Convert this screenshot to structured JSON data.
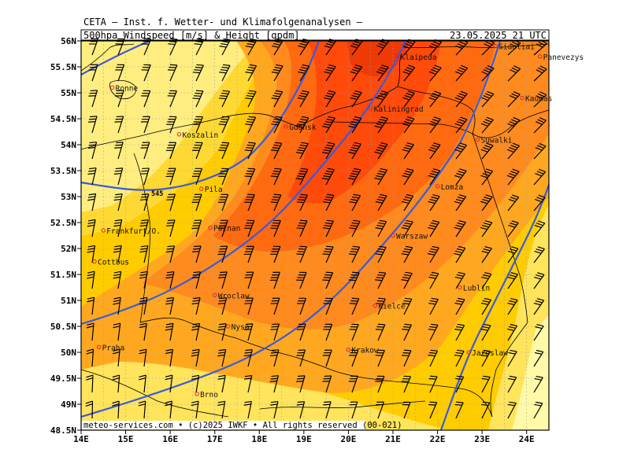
{
  "header": {
    "line1": "CETA — Inst. f. Wetter- und Klimafolgenanalysen —",
    "product": "500hpa Windspeed [m/s] & Height [gpdm]",
    "valid": "23.05.2025 21 UTC"
  },
  "footer": {
    "credit": "meteo-services.com • (c)2025 IWKF • All rights reserved (00-021)"
  },
  "map": {
    "lon_range": [
      14,
      24.5
    ],
    "lat_range": [
      48.5,
      56
    ],
    "lat_ticks": [
      "56N",
      "55.5N",
      "55N",
      "54.5N",
      "54N",
      "53.5N",
      "53N",
      "52.5N",
      "52N",
      "51.5N",
      "51N",
      "50.5N",
      "50N",
      "49.5N",
      "49N",
      "48.5N"
    ],
    "lon_ticks": [
      "14E",
      "15E",
      "16E",
      "17E",
      "18E",
      "19E",
      "20E",
      "21E",
      "22E",
      "23E",
      "24E"
    ],
    "contour_label": "545",
    "colors": {
      "speed_lowest": "#fff9a8",
      "speed_low": "#ffe45c",
      "speed_mid": "#ffcc00",
      "speed_high": "#ffa81f",
      "speed_higher": "#ff8a1e",
      "speed_max": "#ff6a10",
      "speed_core": "#ff4a0a",
      "height_contour": "#3c5ad8",
      "border": "#000000",
      "grid": "#999999"
    },
    "cities": [
      {
        "name": "Klaipeda",
        "lon": 21.1,
        "lat": 55.7
      },
      {
        "name": "Siauliai",
        "lon": 23.3,
        "lat": 55.9
      },
      {
        "name": "Panevezys",
        "lon": 24.3,
        "lat": 55.7
      },
      {
        "name": "Kaunas",
        "lon": 23.9,
        "lat": 54.9
      },
      {
        "name": "Ronne",
        "lon": 14.7,
        "lat": 55.1
      },
      {
        "name": "Kaliningrad",
        "lon": 20.5,
        "lat": 54.7
      },
      {
        "name": "Gdansk",
        "lon": 18.6,
        "lat": 54.35
      },
      {
        "name": "Koszalin",
        "lon": 16.2,
        "lat": 54.2
      },
      {
        "name": "Suwalki",
        "lon": 22.9,
        "lat": 54.1
      },
      {
        "name": "Pila",
        "lon": 16.7,
        "lat": 53.15
      },
      {
        "name": "Lomza",
        "lon": 22.0,
        "lat": 53.2
      },
      {
        "name": "Poznan",
        "lon": 16.9,
        "lat": 52.4
      },
      {
        "name": "Frankfurt/O.",
        "lon": 14.5,
        "lat": 52.35
      },
      {
        "name": "Warszaw",
        "lon": 21.0,
        "lat": 52.25
      },
      {
        "name": "Cottbus",
        "lon": 14.3,
        "lat": 51.75
      },
      {
        "name": "Lublin",
        "lon": 22.5,
        "lat": 51.25
      },
      {
        "name": "Wroclaw",
        "lon": 17.0,
        "lat": 51.1
      },
      {
        "name": "Kielce",
        "lon": 20.6,
        "lat": 50.9
      },
      {
        "name": "Nysa",
        "lon": 17.3,
        "lat": 50.5
      },
      {
        "name": "Praha",
        "lon": 14.4,
        "lat": 50.1
      },
      {
        "name": "Krakow",
        "lon": 20.0,
        "lat": 50.05
      },
      {
        "name": "Jaroslaw",
        "lon": 22.7,
        "lat": 50.0
      },
      {
        "name": "Brno",
        "lon": 16.6,
        "lat": 49.2
      }
    ]
  }
}
